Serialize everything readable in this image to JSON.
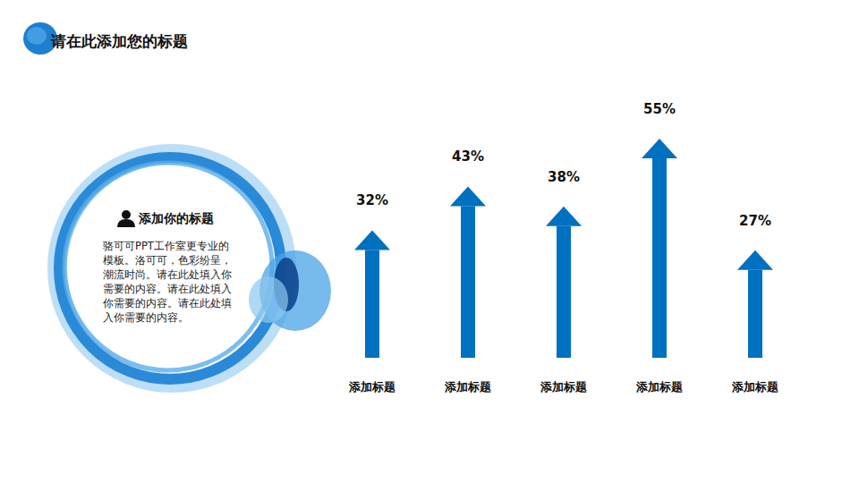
{
  "header": {
    "title": "请在此添加您的标题"
  },
  "text_box": {
    "title": "添加你的标题",
    "body_lines": [
      "骆可可PPT工作室更专业的",
      "模板。洛可可，色彩纷呈，",
      "潮流时尚。请在此处填入你",
      "需要的内容。请在此处填入",
      "你需要的内容。请在此处填",
      "入你需要的内容。"
    ]
  },
  "chart_data": {
    "type": "bar",
    "categories": [
      "添加标题",
      "添加标题",
      "添加标题",
      "添加标题",
      "添加标题"
    ],
    "values": [
      32,
      43,
      38,
      55,
      27
    ],
    "value_labels": [
      "32%",
      "43%",
      "38%",
      "55%",
      "27%"
    ],
    "data_labels": true,
    "tick_labels": "x",
    "color": "#0070c0"
  }
}
